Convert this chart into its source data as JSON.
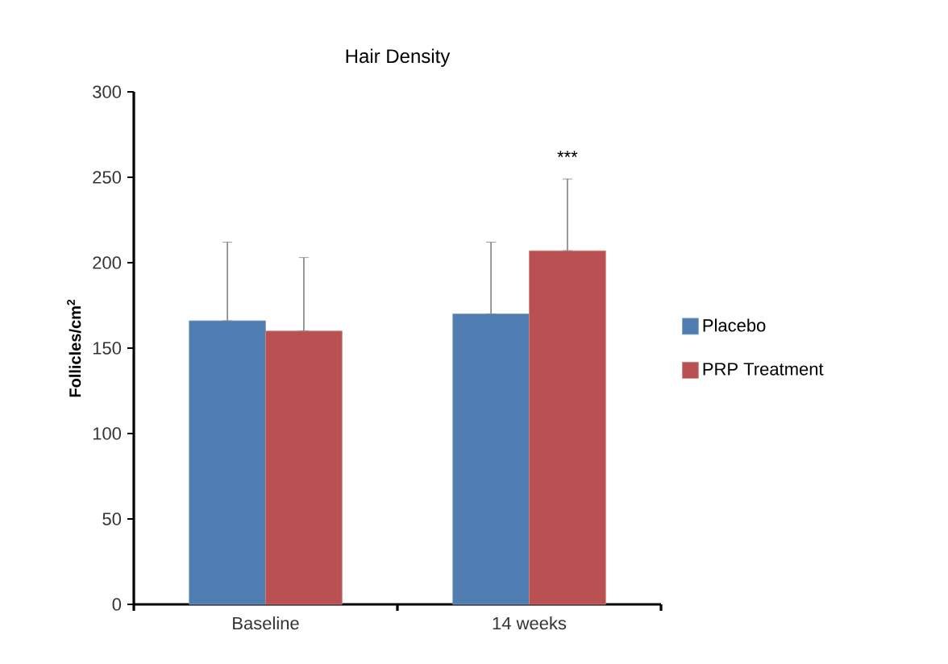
{
  "chart_data": {
    "type": "bar",
    "title": "Hair Density",
    "ylabel": "Follicles/cm$^{2}$",
    "categories": [
      "Baseline",
      "14 weeks"
    ],
    "series": [
      {
        "name": "Placebo",
        "color": "#4f7cb1",
        "values": [
          166,
          170
        ],
        "errors": [
          [
            166,
            212
          ],
          [
            170,
            212
          ]
        ]
      },
      {
        "name": "PRP Treatment",
        "color": "#b95153",
        "values": [
          160,
          207
        ],
        "errors": [
          [
            160,
            203
          ],
          [
            207,
            249
          ]
        ]
      }
    ],
    "ylim": [
      0,
      300
    ],
    "yticks": [
      0,
      50,
      100,
      150,
      200,
      250,
      300
    ],
    "annotations": [
      "***"
    ],
    "legend": "right",
    "grid": false
  }
}
